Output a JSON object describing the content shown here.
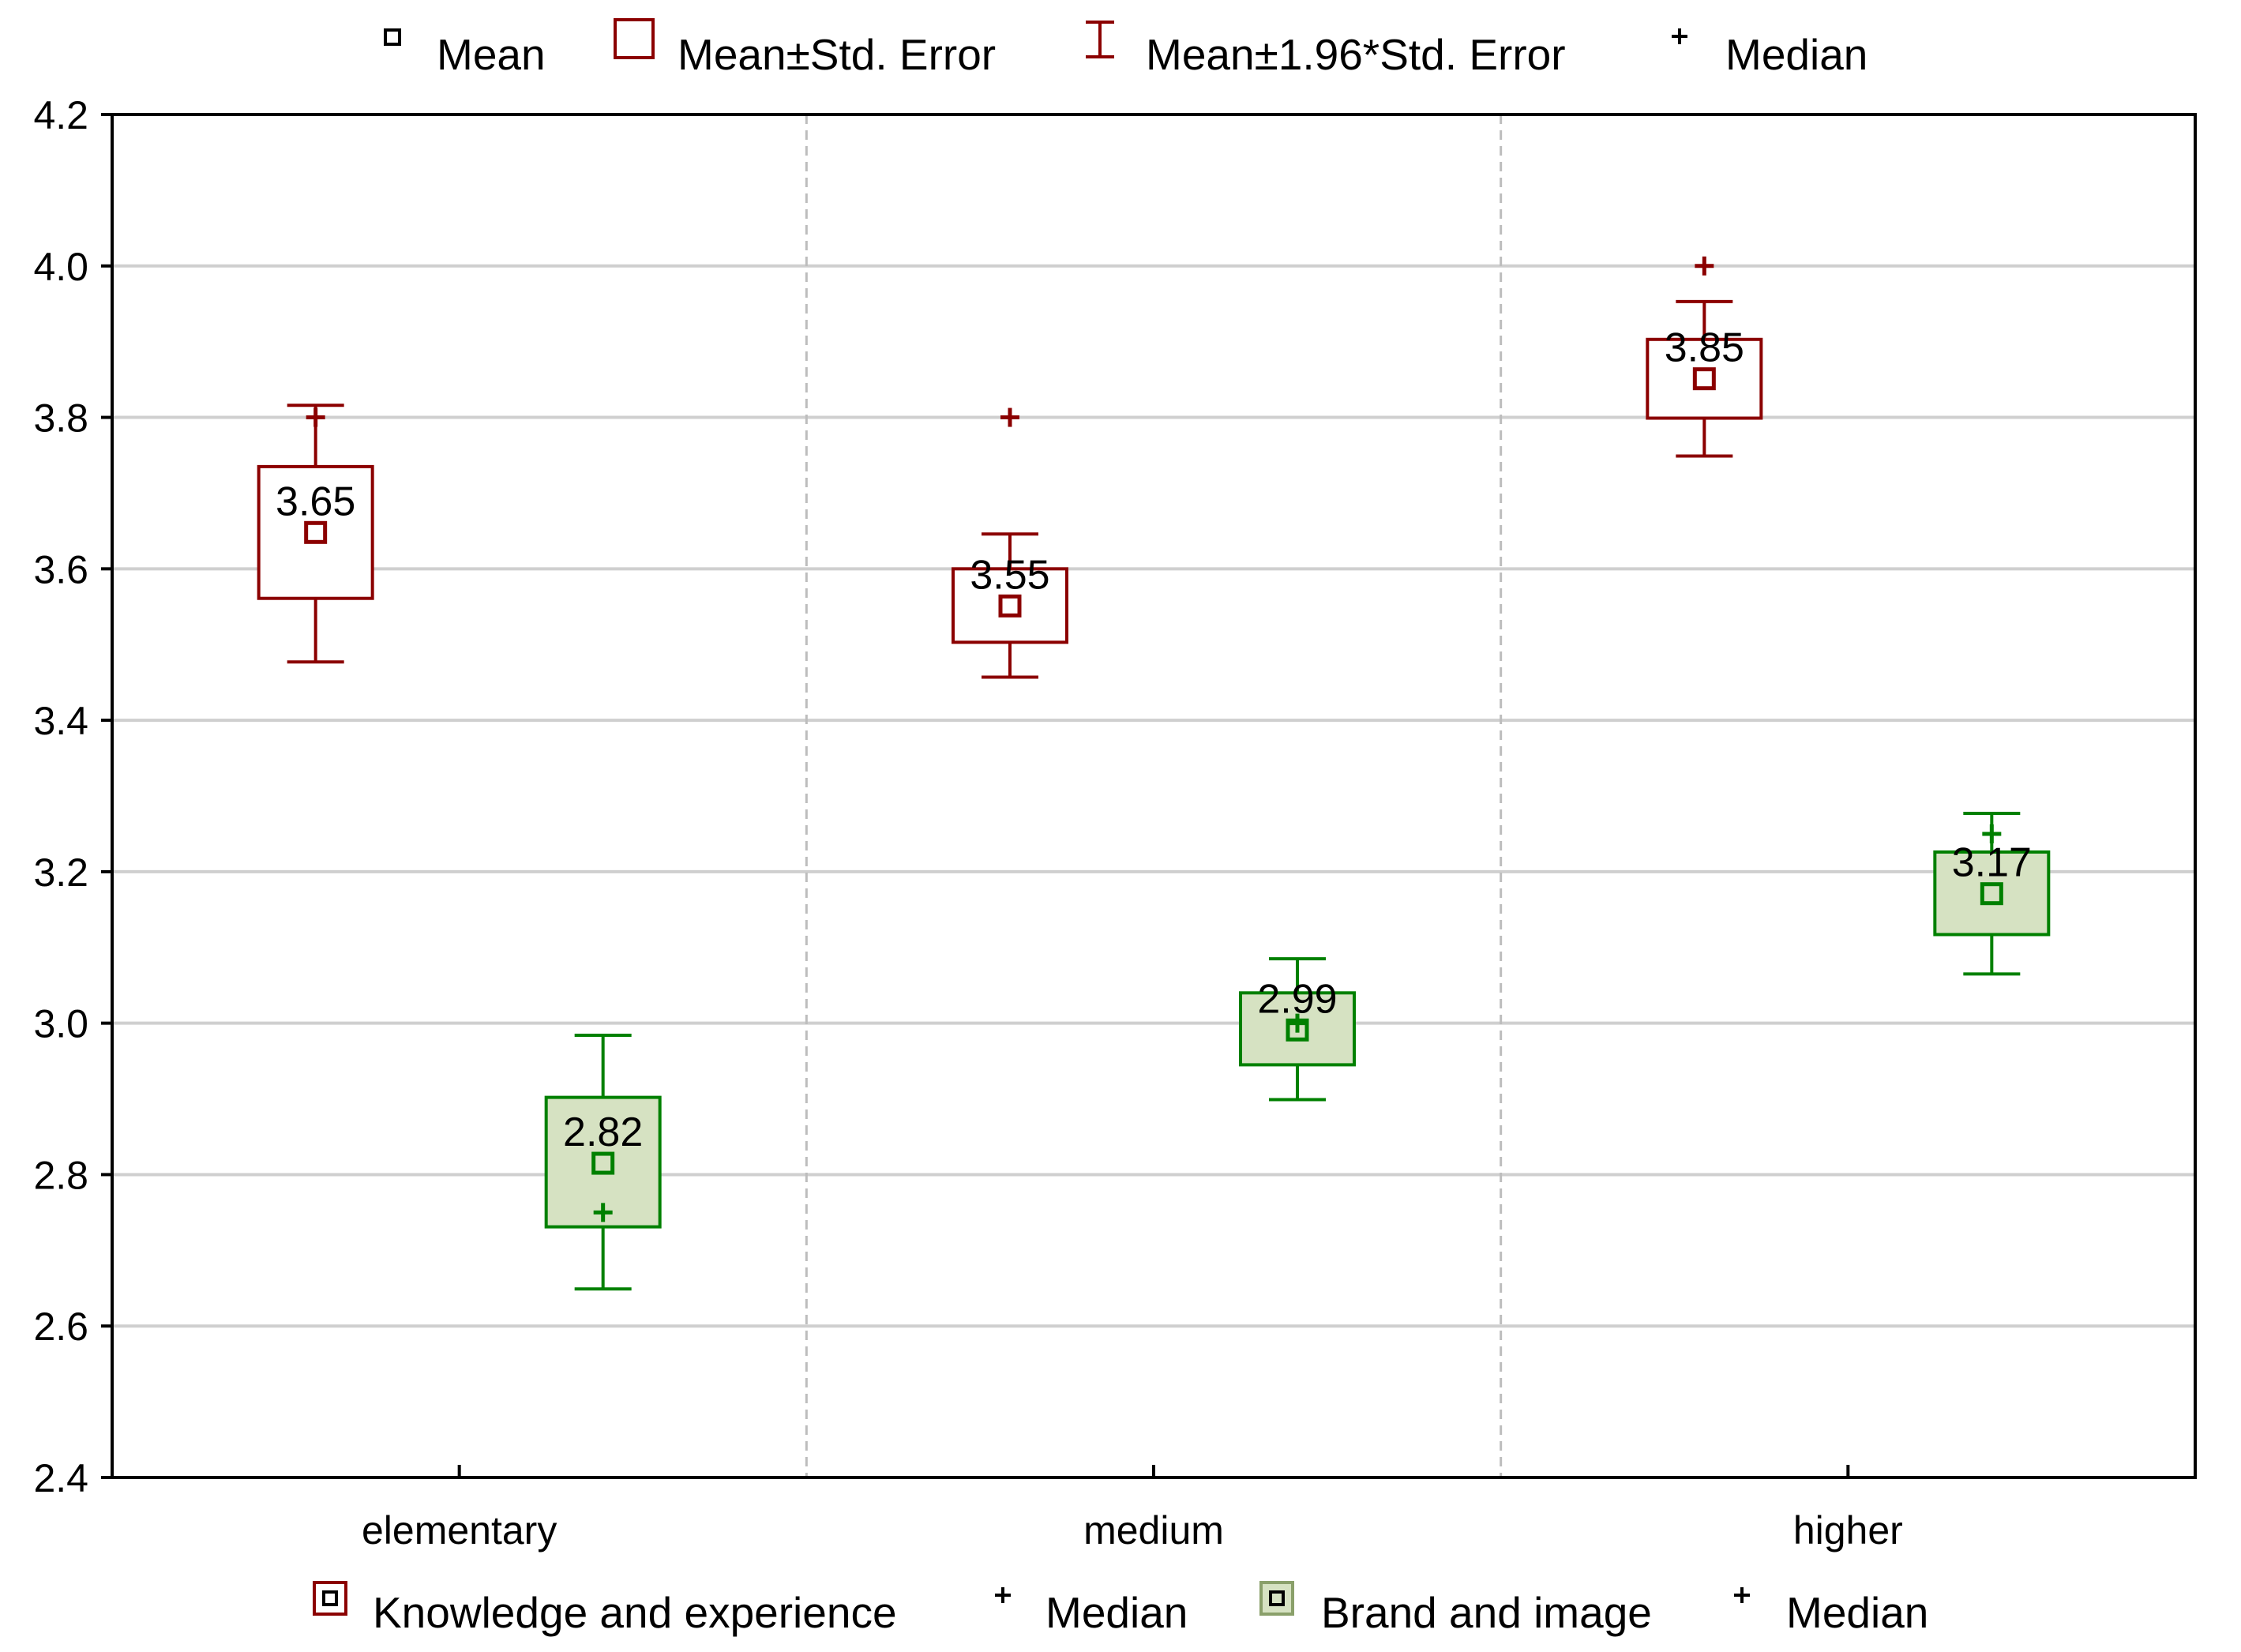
{
  "chart_data": {
    "type": "box",
    "categories": [
      "elementary",
      "medium",
      "higher"
    ],
    "ylim": [
      2.4,
      4.2
    ],
    "yticks": [
      "2.4",
      "2.6",
      "2.8",
      "3.0",
      "3.2",
      "3.4",
      "3.6",
      "3.8",
      "4.0",
      "4.2"
    ],
    "grid": true,
    "top_legend": [
      {
        "symbol": "mean",
        "label": "Mean"
      },
      {
        "symbol": "se-box",
        "label": "Mean±Std. Error"
      },
      {
        "symbol": "whisker",
        "label": "Mean±1.96*Std. Error"
      },
      {
        "symbol": "median",
        "label": "Median"
      }
    ],
    "bottom_legend": [
      {
        "symbol": "series-1",
        "label": "Knowledge and experience"
      },
      {
        "symbol": "median-1",
        "label": "Median"
      },
      {
        "symbol": "series-2",
        "label": "Brand and image"
      },
      {
        "symbol": "median-2",
        "label": "Median"
      }
    ],
    "series": [
      {
        "name": "Knowledge and experience",
        "color": "#8B0000",
        "fill": "#ffffff",
        "mean": [
          3.648,
          3.551,
          3.851
        ],
        "labels": [
          "3.65",
          "3.55",
          "3.85"
        ],
        "se_low": [
          3.561,
          3.503,
          3.799
        ],
        "se_high": [
          3.735,
          3.6,
          3.903
        ],
        "ci_low": [
          3.477,
          3.457,
          3.749
        ],
        "ci_high": [
          3.816,
          3.646,
          3.953
        ],
        "median": [
          3.8,
          3.8,
          4.0
        ]
      },
      {
        "name": "Brand and image",
        "color": "#008000",
        "fill": "#d6e2c2",
        "mean": [
          2.815,
          2.991,
          3.171
        ],
        "labels": [
          "2.82",
          "2.99",
          "3.17"
        ],
        "se_low": [
          2.731,
          2.945,
          3.117
        ],
        "se_high": [
          2.902,
          3.04,
          3.226
        ],
        "ci_low": [
          2.649,
          2.899,
          3.065
        ],
        "ci_high": [
          2.984,
          3.085,
          3.277
        ],
        "median": [
          2.75,
          3.0,
          3.25
        ]
      }
    ]
  }
}
